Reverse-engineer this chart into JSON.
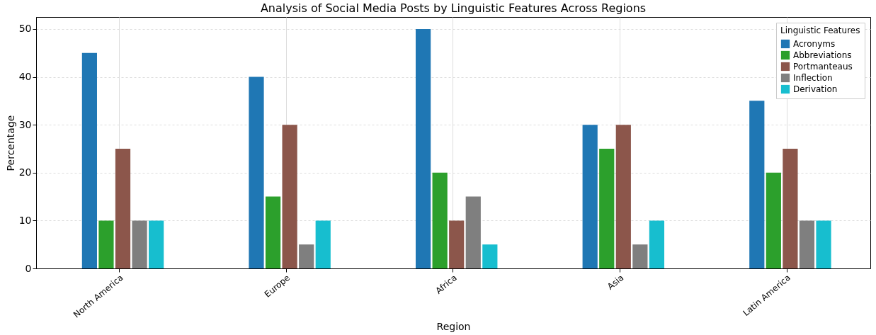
{
  "chart_data": {
    "type": "bar",
    "title": "Analysis of Social Media Posts by Linguistic Features Across Regions",
    "xlabel": "Region",
    "ylabel": "Percentage",
    "legend_title": "Linguistic Features",
    "categories": [
      "North America",
      "Europe",
      "Africa",
      "Asia",
      "Latin America"
    ],
    "series": [
      {
        "name": "Acronyms",
        "color": "#1f77b4",
        "values": [
          45,
          40,
          50,
          30,
          35
        ]
      },
      {
        "name": "Abbreviations",
        "color": "#2ca02c",
        "values": [
          10,
          15,
          20,
          25,
          20
        ]
      },
      {
        "name": "Portmanteaus",
        "color": "#8c564b",
        "values": [
          25,
          30,
          10,
          30,
          25
        ]
      },
      {
        "name": "Inflection",
        "color": "#7f7f7f",
        "values": [
          10,
          5,
          15,
          5,
          10
        ]
      },
      {
        "name": "Derivation",
        "color": "#17becf",
        "values": [
          10,
          10,
          5,
          10,
          10
        ]
      }
    ],
    "ylim": [
      0,
      52.5
    ],
    "yticks": [
      0,
      10,
      20,
      30,
      40,
      50
    ],
    "grid": true,
    "legend": "top right"
  }
}
